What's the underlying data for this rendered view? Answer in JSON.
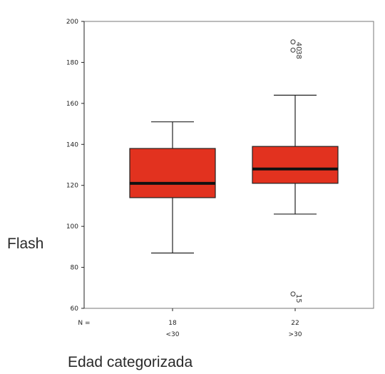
{
  "chart_data": {
    "type": "boxplot",
    "title": "",
    "xlabel": "Edad categorizada",
    "ylabel": "Flash",
    "ylim": [
      60,
      200
    ],
    "yticks": [
      60,
      80,
      100,
      120,
      140,
      160,
      180,
      200
    ],
    "x_origin_label": "N =",
    "categories": [
      {
        "n": "18",
        "label": "<30"
      },
      {
        "n": "22",
        "label": ">30"
      }
    ],
    "series": [
      {
        "category": "<30",
        "whisker_low": 87,
        "q1": 114,
        "median": 121,
        "q3": 138,
        "whisker_high": 151,
        "outliers": []
      },
      {
        "category": ">30",
        "whisker_low": 106,
        "q1": 121,
        "median": 128,
        "q3": 139,
        "whisker_high": 164,
        "outliers": [
          {
            "value": 190,
            "label": "40"
          },
          {
            "value": 186,
            "label": "38"
          },
          {
            "value": 67,
            "label": "15"
          }
        ]
      }
    ],
    "box_color": "#e2321f",
    "median_color": "#111111",
    "grid": false
  }
}
